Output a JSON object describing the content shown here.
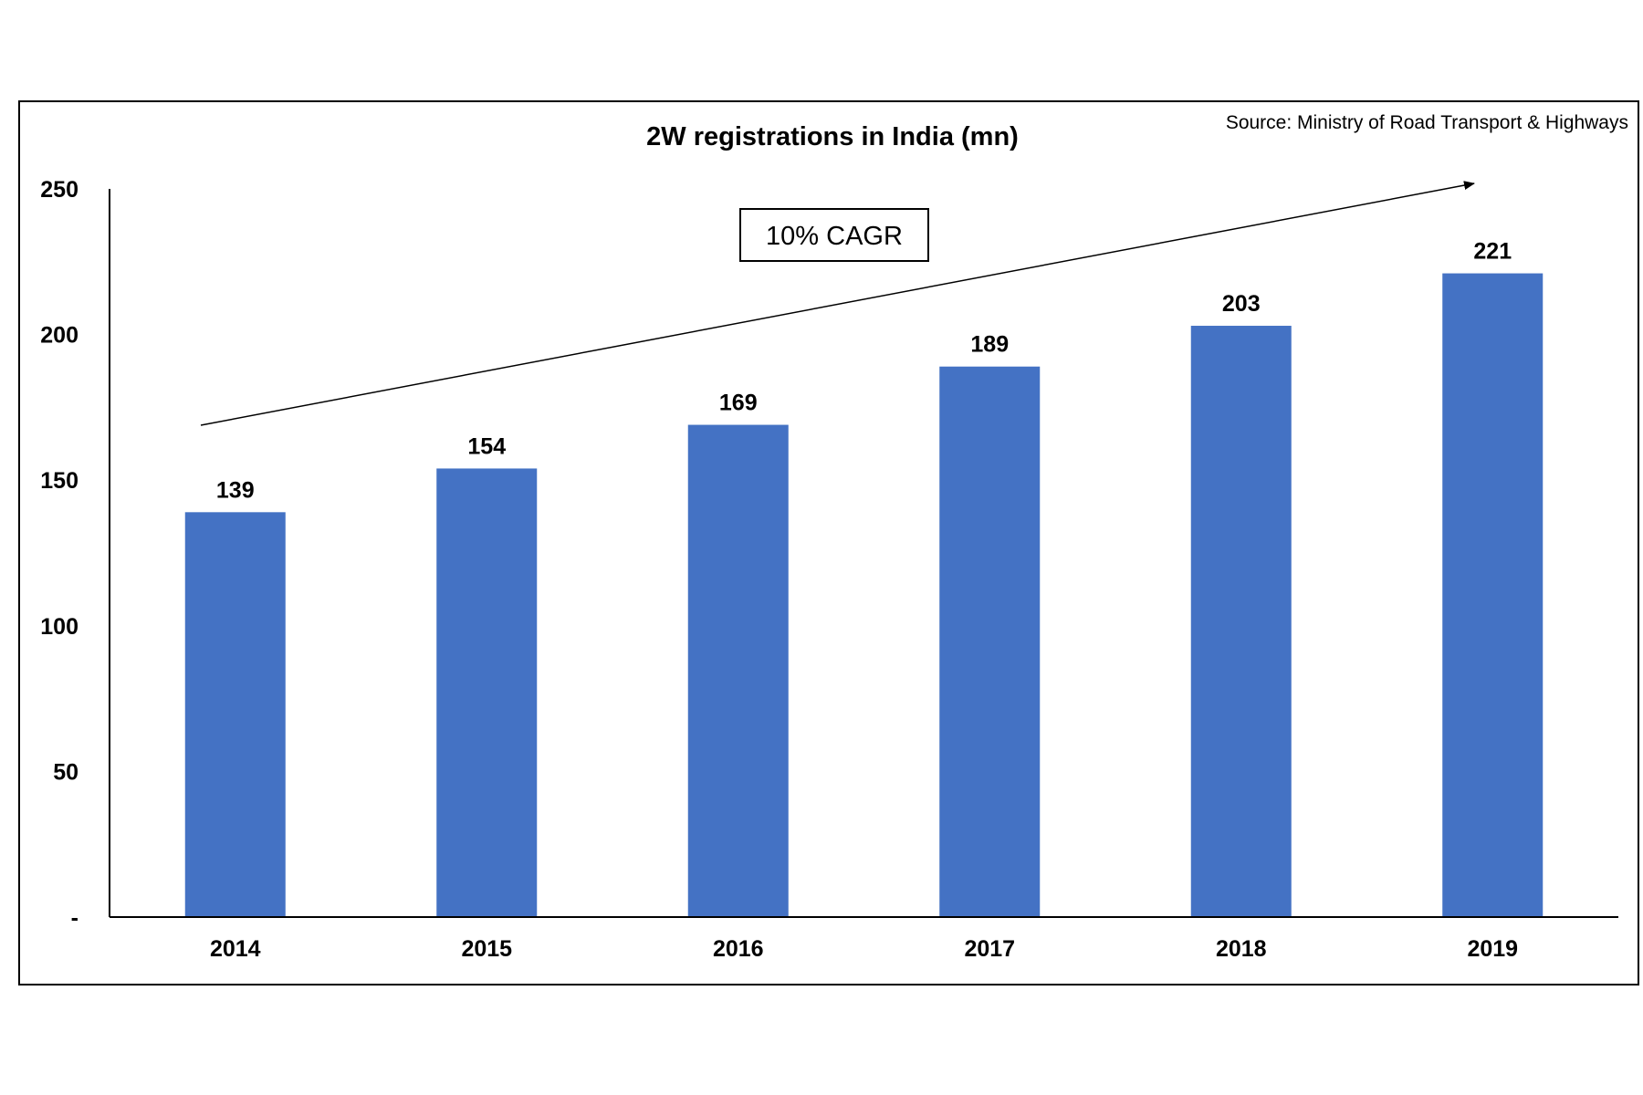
{
  "chart_data": {
    "type": "bar",
    "title": "2W registrations in India (mn)",
    "source": "Source: Ministry of Road Transport & Highways",
    "categories": [
      "2014",
      "2015",
      "2016",
      "2017",
      "2018",
      "2019"
    ],
    "values": [
      139,
      154,
      169,
      189,
      203,
      221
    ],
    "data_labels": [
      "139",
      "154",
      "169",
      "189",
      "203",
      "221"
    ],
    "ylim": [
      0,
      250
    ],
    "yticks": [
      0,
      50,
      100,
      150,
      200,
      250
    ],
    "ytick_labels": [
      "-",
      "50",
      "100",
      "150",
      "200",
      "250"
    ],
    "xlabel": "",
    "ylabel": "",
    "grid": false,
    "bar_color": "#4472C4",
    "annotation": {
      "text": "10% CAGR",
      "arrow": "trend arrow rising from 2014 to 2019"
    }
  }
}
